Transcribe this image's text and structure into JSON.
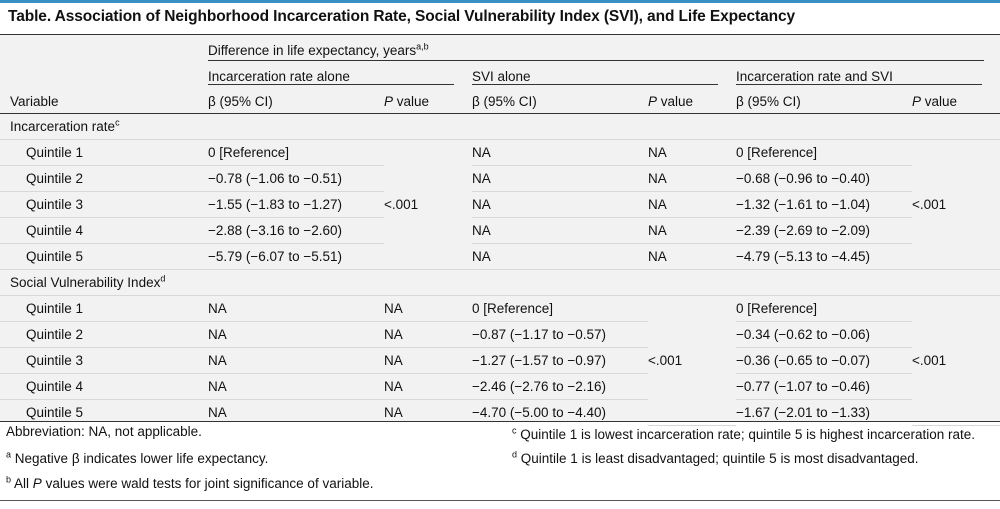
{
  "title": "Table. Association of Neighborhood Incarceration Rate, Social Vulnerability Index (SVI), and Life Expectancy",
  "header": {
    "variable": "Variable",
    "group": "Difference in life expectancy, years",
    "group_sup": "a,b",
    "model1": "Incarceration rate alone",
    "model2": "SVI alone",
    "model3": "Incarceration rate and SVI",
    "beta": "β (95% CI)",
    "p_italic": "P",
    "p_rest": " value"
  },
  "sections": [
    {
      "label": "Incarceration rate",
      "sup": "c",
      "p_m1": "<.001",
      "p_m2": "",
      "p_m3": "<.001",
      "rows": [
        {
          "q": "Quintile 1",
          "b1": "0 [Reference]",
          "b2": "NA",
          "p2": "NA",
          "b3": "0 [Reference]"
        },
        {
          "q": "Quintile 2",
          "b1": "−0.78 (−1.06 to −0.51)",
          "b2": "NA",
          "p2": "NA",
          "b3": "−0.68 (−0.96 to −0.40)"
        },
        {
          "q": "Quintile 3",
          "b1": "−1.55 (−1.83 to −1.27)",
          "b2": "NA",
          "p2": "NA",
          "b3": "−1.32 (−1.61 to −1.04)"
        },
        {
          "q": "Quintile 4",
          "b1": "−2.88 (−3.16 to −2.60)",
          "b2": "NA",
          "p2": "NA",
          "b3": "−2.39 (−2.69 to −2.09)"
        },
        {
          "q": "Quintile 5",
          "b1": "−5.79 (−6.07 to −5.51)",
          "b2": "NA",
          "p2": "NA",
          "b3": "−4.79 (−5.13 to −4.45)"
        }
      ]
    },
    {
      "label": "Social Vulnerability Index",
      "sup": "d",
      "p_m2": "<.001",
      "p_m3": "<.001",
      "rows": [
        {
          "q": "Quintile 1",
          "b1": "NA",
          "p1": "NA",
          "b2": "0 [Reference]",
          "b3": "0 [Reference]"
        },
        {
          "q": "Quintile 2",
          "b1": "NA",
          "p1": "NA",
          "b2": "−0.87 (−1.17 to −0.57)",
          "b3": "−0.34 (−0.62 to −0.06)"
        },
        {
          "q": "Quintile 3",
          "b1": "NA",
          "p1": "NA",
          "b2": "−1.27 (−1.57 to −0.97)",
          "b3": "−0.36 (−0.65 to −0.07)"
        },
        {
          "q": "Quintile 4",
          "b1": "NA",
          "p1": "NA",
          "b2": "−2.46 (−2.76 to −2.16)",
          "b3": "−0.77 (−1.07 to −0.46)"
        },
        {
          "q": "Quintile 5",
          "b1": "NA",
          "p1": "NA",
          "b2": "−4.70 (−5.00 to −4.40)",
          "b3": "−1.67 (−2.01 to −1.33)"
        }
      ]
    }
  ],
  "footnotes": {
    "abbrev": "Abbreviation: NA, not applicable.",
    "a_mark": "a",
    "a": "Negative β indicates lower life expectancy.",
    "b_mark": "b",
    "b_pre": "All ",
    "b_italic": "P",
    "b_post": " values were wald tests for joint significance of variable.",
    "c_mark": "c",
    "c": "Quintile 1 is lowest incarceration rate; quintile 5 is highest incarceration rate.",
    "d_mark": "d",
    "d": "Quintile 1 is least disadvantaged; quintile 5 is most disadvantaged."
  }
}
